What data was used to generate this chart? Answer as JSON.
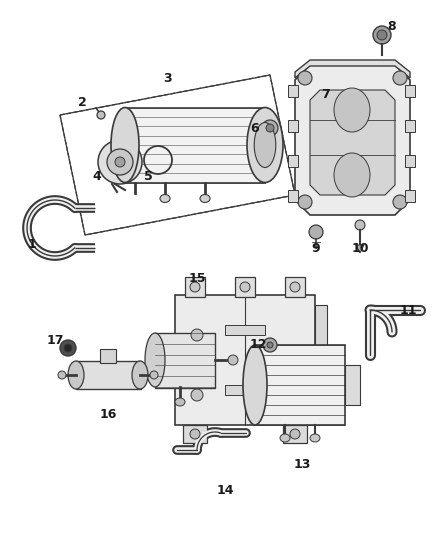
{
  "bg_color": "#ffffff",
  "line_color": "#3a3a3a",
  "label_color": "#1a1a1a",
  "figsize": [
    4.38,
    5.33
  ],
  "dpi": 100
}
